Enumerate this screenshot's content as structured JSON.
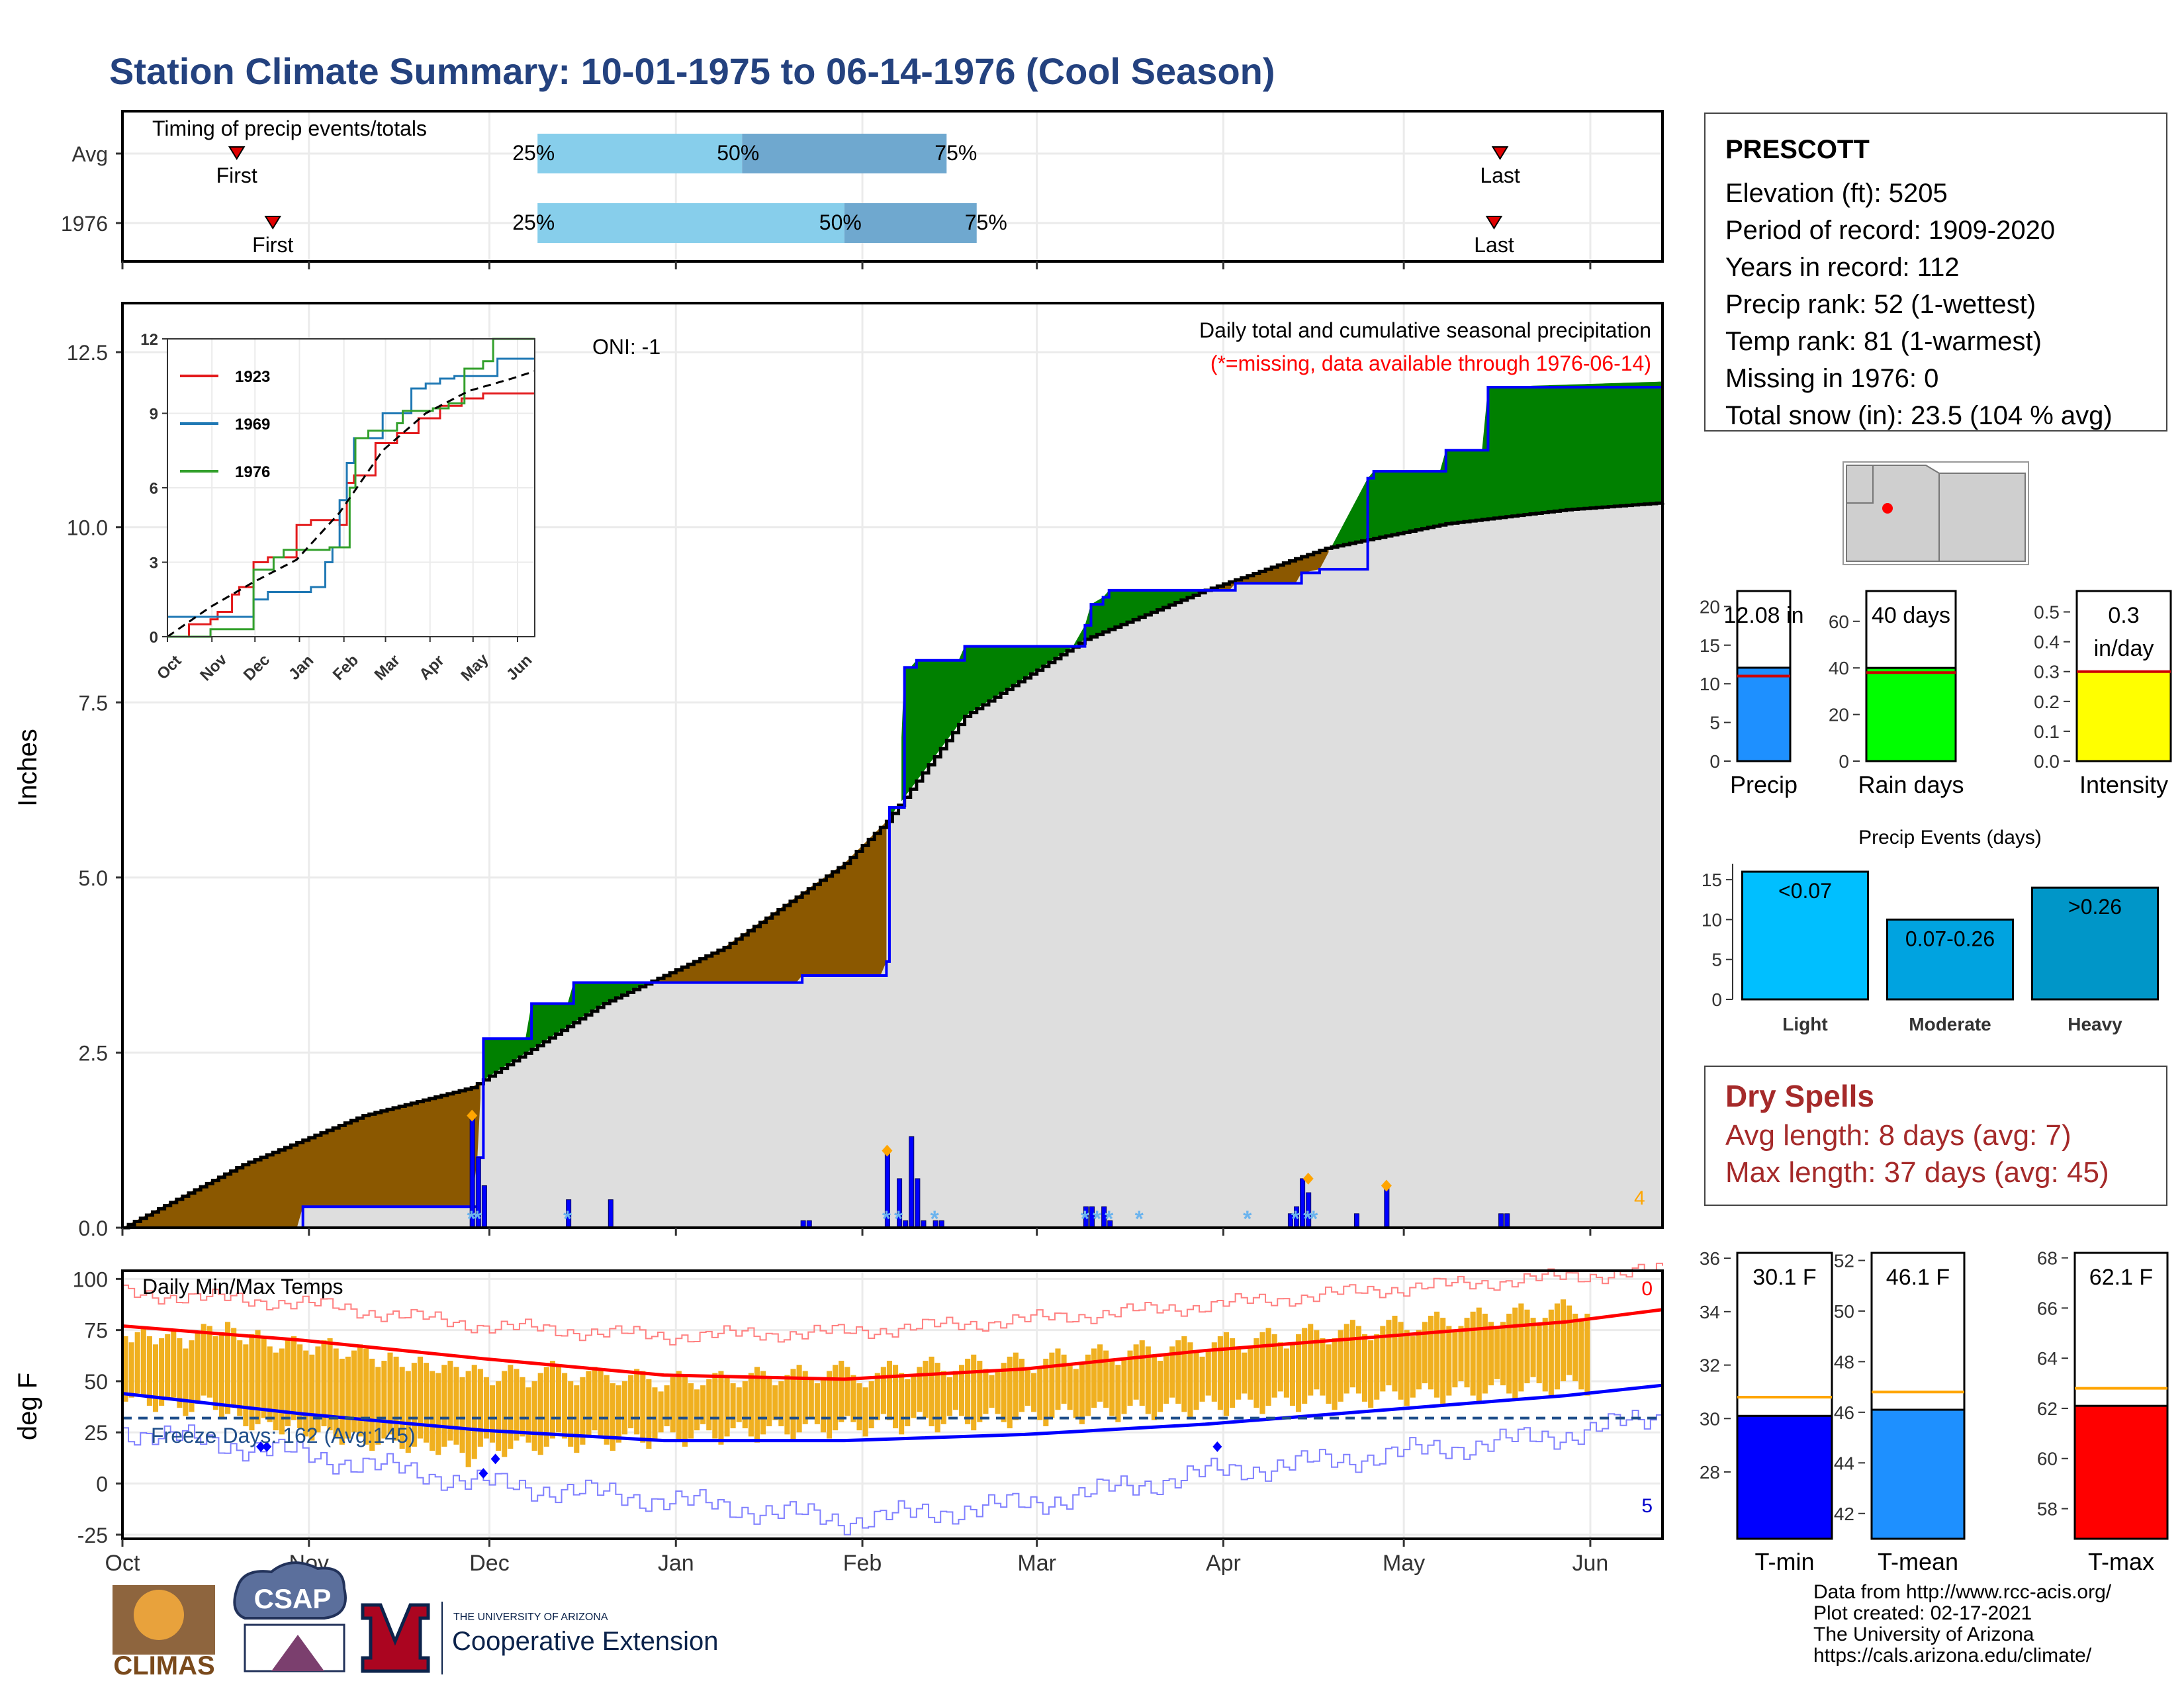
{
  "title": "Station Climate Summary: 10-01-1975 to 06-14-1976 (Cool Season)",
  "colors": {
    "title": "#24427f",
    "below_avg": "#8B5800",
    "above_avg": "#008000",
    "cumul_line": "#0000ff",
    "avg_fill": "#dedede",
    "temp_bar": "#f0b020",
    "tmax_avg": "#ff0000",
    "tmin_avg": "#0000ff",
    "light_blue": "#87ceeb",
    "steel_blue": "#6fa8cf"
  },
  "timing": {
    "title": "Timing of precip events/totals",
    "rows": [
      {
        "label": "Avg",
        "first": "First",
        "last": "Last",
        "p25": "25%",
        "p50": "50%",
        "p75": "75%",
        "first_day": 19,
        "last_day": 229,
        "q25_day": 69,
        "q50_day": 103,
        "q75_day": 137
      },
      {
        "label": "1976",
        "first": "First",
        "last": "Last",
        "p25": "25%",
        "p50": "50%",
        "p75": "75%",
        "first_day": 25,
        "last_day": 228,
        "q25_day": 69,
        "q50_day": 120,
        "q75_day": 142
      }
    ]
  },
  "precip_panel": {
    "ylabel": "Inches",
    "title": "Daily total and cumulative seasonal precipitation",
    "subtitle": "(*=missing, data available through 1976-06-14)",
    "oni": "ONI: -1",
    "corner_count": "4",
    "yticks": [
      "0.0",
      "2.5",
      "5.0",
      "7.5",
      "10.0",
      "12.5"
    ]
  },
  "inset": {
    "yticks": [
      "0",
      "3",
      "6",
      "9",
      "12"
    ],
    "xticks": [
      "Oct",
      "Nov",
      "Dec",
      "Jan",
      "Feb",
      "Mar",
      "Apr",
      "May",
      "Jun"
    ],
    "legend": [
      {
        "name": "1923",
        "color": "#e31a1c"
      },
      {
        "name": "1969",
        "color": "#1f78b4"
      },
      {
        "name": "1976",
        "color": "#33a02c"
      }
    ]
  },
  "temp_panel": {
    "ylabel": "deg F",
    "title": "Daily Min/Max Temps",
    "freeze": "Freeze Days: 162 (Avg:145)",
    "count_top": "0",
    "count_bottom": "5",
    "yticks": [
      "-25",
      "0",
      "25",
      "50",
      "75",
      "100"
    ]
  },
  "xaxis": {
    "months": [
      "Oct",
      "Nov",
      "Dec",
      "Jan",
      "Feb",
      "Mar",
      "Apr",
      "May",
      "Jun"
    ]
  },
  "station": {
    "name": "PRESCOTT",
    "lines": [
      "Elevation (ft): 5205",
      "Period of record: 1909-2020",
      "Years in record: 112",
      "Precip rank: 52 (1-wettest)",
      "Temp rank: 81 (1-warmest)",
      "Missing in 1976: 0",
      "Total snow (in): 23.5 (104 % avg)"
    ]
  },
  "summary_bars": [
    {
      "label": "Precip",
      "value_text": "12.08 in",
      "value": 12.08,
      "avg": 11.0,
      "ymax": 22,
      "yticks": [
        "0",
        "5",
        "10",
        "15",
        "20"
      ],
      "color": "#1e90ff"
    },
    {
      "label": "Rain days",
      "value_text": "40 days",
      "value": 40,
      "avg": 38,
      "ymax": 73,
      "yticks": [
        "0",
        "20",
        "40",
        "60"
      ],
      "color": "#00ff00"
    },
    {
      "label": "Intensity",
      "value_text": "0.3 in/day",
      "value": 0.3,
      "avg": 0.3,
      "ymax": 0.57,
      "yticks": [
        "0.0",
        "0.1",
        "0.2",
        "0.3",
        "0.4",
        "0.5"
      ],
      "color": "#ffff00"
    }
  ],
  "events": {
    "title": "Precip Events (days)",
    "yticks": [
      "0",
      "5",
      "10",
      "15"
    ],
    "bars": [
      {
        "label": "Light",
        "value": 16,
        "bar_text": "<0.07",
        "color": "#00bfff"
      },
      {
        "label": "Moderate",
        "value": 10,
        "bar_text": "0.07-0.26",
        "color": "#00a3e0"
      },
      {
        "label": "Heavy",
        "value": 14,
        "bar_text": ">0.26",
        "color": "#0096c8"
      }
    ]
  },
  "dry_spells": {
    "title": "Dry Spells",
    "avg": "Avg length: 8 days (avg: 7)",
    "max": "Max length: 37 days (avg: 45)"
  },
  "temp_bars": [
    {
      "label": "T-min",
      "value_text": "30.1 F",
      "value": 30.1,
      "avg": 30.8,
      "ymin": 25.5,
      "ymax": 36.2,
      "yticks": [
        "28",
        "30",
        "32",
        "34",
        "36"
      ],
      "color": "#0000ff"
    },
    {
      "label": "T-mean",
      "value_text": "46.1 F",
      "value": 46.1,
      "avg": 46.8,
      "ymin": 41.0,
      "ymax": 52.3,
      "yticks": [
        "42",
        "44",
        "46",
        "48",
        "50",
        "52"
      ],
      "color": "#1e90ff"
    },
    {
      "label": "T-max",
      "value_text": "62.1 F",
      "value": 62.1,
      "avg": 62.8,
      "ymin": 56.8,
      "ymax": 68.2,
      "yticks": [
        "58",
        "60",
        "62",
        "64",
        "66",
        "68"
      ],
      "color": "#ff0000"
    }
  ],
  "footer": {
    "lines": [
      "Data from http://www.rcc-acis.org/",
      "Plot created: 02-17-2021",
      "The University of Arizona",
      "https://cals.arizona.edu/climate/"
    ],
    "logo_climas": "CLIMAS",
    "logo_csap": "CSAP",
    "ua_small": "THE UNIVERSITY OF ARIZONA",
    "ua_big": "Cooperative Extension"
  },
  "chart_data": [
    {
      "type": "area",
      "title": "Daily total and cumulative seasonal precipitation",
      "ylabel": "Inches",
      "ylim": [
        0,
        13.2
      ],
      "x_unit": "day of season (0 = Oct 1, 1975)",
      "cumulative_1976": {
        "x": [
          0,
          29,
          30,
          58,
          59,
          60,
          67,
          68,
          74,
          75,
          80,
          81,
          112,
          113,
          126,
          127,
          127.5,
          129,
          130,
          131,
          132,
          133,
          139,
          140,
          158,
          160,
          161,
          163,
          164,
          183,
          184,
          185,
          186,
          195,
          196,
          199,
          207,
          208,
          211,
          219,
          220,
          226,
          227,
          256
        ],
        "y": [
          0,
          0,
          0.3,
          0.3,
          1.0,
          2.7,
          2.7,
          3.2,
          3.2,
          3.5,
          3.5,
          3.5,
          3.5,
          3.6,
          3.6,
          3.8,
          6.0,
          6.0,
          8.0,
          8.0,
          8.1,
          8.1,
          8.1,
          8.3,
          8.3,
          8.6,
          8.9,
          9.0,
          9.1,
          9.1,
          9.1,
          9.2,
          9.2,
          9.2,
          9.35,
          9.4,
          10.7,
          10.8,
          10.8,
          10.8,
          11.1,
          11.1,
          12.0,
          12.08
        ]
      },
      "average_cumulative": {
        "x": [
          0,
          20,
          40,
          58,
          80,
          100,
          120,
          127,
          140,
          160,
          180,
          200,
          220,
          240,
          256
        ],
        "y": [
          0,
          0.9,
          1.6,
          2.0,
          3.2,
          4.0,
          5.2,
          5.8,
          7.3,
          8.4,
          9.1,
          9.7,
          10.05,
          10.25,
          10.35
        ]
      },
      "daily_precip": {
        "x": [
          58,
          59,
          60,
          74,
          81,
          113,
          114,
          127,
          129,
          130,
          131,
          132,
          133,
          135,
          136,
          160,
          161,
          163,
          164,
          194,
          195,
          196,
          197,
          205,
          210,
          229,
          230
        ],
        "y": [
          1.6,
          1.0,
          0.6,
          0.4,
          0.4,
          0.1,
          0.1,
          1.1,
          0.7,
          0.1,
          1.3,
          0.7,
          0.1,
          0.1,
          0.1,
          0.3,
          0.3,
          0.3,
          0.1,
          0.2,
          0.3,
          0.7,
          0.5,
          0.2,
          0.6,
          0.2,
          0.2
        ]
      },
      "snow_days_x": [
        58,
        59,
        74,
        127,
        129,
        135,
        160,
        162,
        164,
        169,
        187,
        195,
        197,
        198
      ]
    },
    {
      "type": "line",
      "title": "",
      "ylim": [
        0,
        12
      ],
      "xlim_months": [
        "Oct",
        "Jun"
      ],
      "series": [
        {
          "name": "1923",
          "x": [
            0,
            15,
            30,
            35,
            45,
            50,
            60,
            70,
            80,
            90,
            100,
            112,
            120,
            125,
            130,
            145,
            160,
            175,
            190,
            205,
            220,
            240,
            256
          ],
          "y": [
            0,
            0.5,
            0.7,
            1.0,
            1.7,
            2.0,
            3.0,
            3.2,
            3.2,
            4.5,
            4.7,
            4.7,
            4.5,
            6.2,
            6.5,
            7.8,
            8.2,
            8.8,
            9.3,
            9.6,
            9.8,
            9.8,
            9.8
          ]
        },
        {
          "name": "1969",
          "x": [
            0,
            30,
            60,
            70,
            80,
            100,
            110,
            115,
            120,
            125,
            130,
            150,
            170,
            180,
            190,
            200,
            230,
            256
          ],
          "y": [
            0.8,
            0.8,
            1.5,
            1.8,
            1.8,
            2.0,
            3.0,
            3.6,
            5.5,
            7.0,
            8.0,
            9.0,
            10.0,
            10.2,
            10.4,
            10.5,
            11.2,
            11.2
          ]
        },
        {
          "name": "1976",
          "x": [
            0,
            29,
            30,
            58,
            60,
            74,
            81,
            113,
            127,
            131,
            140,
            160,
            164,
            185,
            196,
            207,
            220,
            227,
            256
          ],
          "y": [
            0,
            0,
            0.3,
            0.3,
            2.7,
            3.2,
            3.5,
            3.6,
            6.0,
            8.0,
            8.3,
            8.6,
            9.1,
            9.2,
            9.4,
            10.8,
            11.1,
            12.0,
            12.08
          ]
        },
        {
          "name": "average",
          "x": [
            0,
            30,
            60,
            90,
            120,
            150,
            180,
            210,
            240,
            256
          ],
          "y": [
            0,
            1.2,
            2.2,
            3.1,
            5.0,
            7.5,
            9.0,
            9.9,
            10.4,
            10.7
          ]
        }
      ]
    },
    {
      "type": "bar",
      "title": "Daily Min/Max Temps",
      "ylabel": "deg F",
      "ylim": [
        -27,
        104
      ],
      "x_unit": "day of season (0 = Oct 1, 1975)",
      "tmax_avg": {
        "x": [
          0,
          30,
          60,
          90,
          120,
          150,
          180,
          210,
          240,
          256
        ],
        "y": [
          77,
          70,
          61,
          53,
          51,
          56,
          65,
          72,
          79,
          85
        ]
      },
      "tmin_avg": {
        "x": [
          0,
          30,
          60,
          90,
          120,
          150,
          180,
          210,
          240,
          256
        ],
        "y": [
          44,
          34,
          26,
          21,
          21,
          24,
          29,
          36,
          43,
          48
        ]
      },
      "tmax_record": {
        "x": [
          0,
          30,
          60,
          90,
          120,
          150,
          180,
          210,
          240,
          256
        ],
        "y": [
          93,
          88,
          77,
          72,
          74,
          80,
          87,
          95,
          101,
          104
        ]
      },
      "tmin_record": {
        "x": [
          0,
          30,
          60,
          90,
          120,
          150,
          180,
          210,
          240,
          256
        ],
        "y": [
          26,
          14,
          0,
          -8,
          -18,
          -10,
          5,
          14,
          24,
          33
        ]
      },
      "freeze_line": 32,
      "daily_high": [
        72,
        69,
        74,
        76,
        72,
        68,
        71,
        73,
        75,
        71,
        66,
        70,
        74,
        78,
        77,
        72,
        74,
        79,
        76,
        70,
        68,
        73,
        75,
        71,
        67,
        64,
        66,
        70,
        72,
        68,
        65,
        63,
        67,
        70,
        71,
        66,
        61,
        62,
        65,
        68,
        66,
        61,
        57,
        60,
        64,
        62,
        57,
        55,
        59,
        62,
        59,
        55,
        54,
        58,
        60,
        57,
        52,
        55,
        58,
        56,
        52,
        48,
        50,
        55,
        58,
        56,
        52,
        47,
        50,
        54,
        57,
        60,
        58,
        54,
        50,
        48,
        52,
        55,
        57,
        56,
        53,
        49,
        48,
        50,
        53,
        56,
        55,
        51,
        47,
        45,
        48,
        52,
        55,
        53,
        49,
        46,
        48,
        51,
        54,
        55,
        52,
        49,
        47,
        50,
        54,
        57,
        55,
        51,
        48,
        50,
        53,
        56,
        58,
        55,
        51,
        49,
        51,
        55,
        58,
        60,
        57,
        53,
        49,
        47,
        50,
        54,
        57,
        60,
        58,
        54,
        51,
        53,
        57,
        60,
        62,
        59,
        55,
        52,
        55,
        58,
        61,
        63,
        60,
        56,
        53,
        55,
        59,
        62,
        64,
        61,
        57,
        54,
        57,
        61,
        64,
        66,
        63,
        59,
        56,
        59,
        63,
        66,
        68,
        65,
        61,
        58,
        61,
        65,
        68,
        70,
        67,
        63,
        60,
        63,
        67,
        70,
        72,
        69,
        65,
        62,
        65,
        69,
        72,
        74,
        71,
        67,
        64,
        67,
        71,
        74,
        76,
        73,
        69,
        66,
        69,
        73,
        76,
        78,
        75,
        71,
        68,
        71,
        75,
        78,
        80,
        77,
        73,
        70,
        73,
        77,
        80,
        82,
        79,
        75,
        72,
        75,
        79,
        82,
        84,
        81,
        77,
        74,
        77,
        81,
        84,
        86,
        83,
        79,
        76,
        79,
        83,
        86,
        88,
        85,
        81,
        78,
        81,
        85,
        88,
        90,
        87,
        83,
        80,
        83
      ],
      "daily_low": [
        40,
        42,
        44,
        43,
        38,
        35,
        38,
        41,
        42,
        37,
        33,
        35,
        39,
        43,
        42,
        36,
        32,
        34,
        38,
        33,
        28,
        26,
        29,
        32,
        30,
        26,
        24,
        28,
        31,
        27,
        23,
        21,
        25,
        28,
        26,
        22,
        19,
        22,
        25,
        23,
        19,
        16,
        19,
        22,
        24,
        21,
        17,
        15,
        18,
        22,
        20,
        16,
        14,
        18,
        21,
        19,
        15,
        8,
        12,
        18,
        22,
        20,
        16,
        13,
        17,
        21,
        23,
        20,
        16,
        14,
        18,
        22,
        25,
        22,
        18,
        15,
        19,
        23,
        26,
        23,
        19,
        16,
        20,
        24,
        27,
        24,
        20,
        17,
        21,
        25,
        28,
        25,
        21,
        18,
        22,
        26,
        29,
        26,
        22,
        19,
        23,
        27,
        30,
        27,
        23,
        20,
        24,
        28,
        31,
        28,
        24,
        21,
        25,
        29,
        32,
        29,
        25,
        22,
        26,
        30,
        33,
        30,
        26,
        23,
        27,
        31,
        34,
        31,
        27,
        24,
        28,
        32,
        35,
        32,
        28,
        25,
        29,
        33,
        36,
        33,
        29,
        26,
        30,
        34,
        37,
        34,
        30,
        27,
        31,
        35,
        38,
        35,
        31,
        28,
        32,
        36,
        39,
        36,
        32,
        29,
        33,
        37,
        40,
        37,
        33,
        30,
        34,
        38,
        41,
        38,
        34,
        31,
        35,
        39,
        42,
        39,
        35,
        32,
        36,
        40,
        43,
        40,
        36,
        33,
        37,
        41,
        44,
        41,
        37,
        34,
        38,
        42,
        45,
        42,
        38,
        35,
        39,
        43,
        46,
        43,
        39,
        36,
        40,
        44,
        47,
        44,
        40,
        37,
        41,
        45,
        48,
        45,
        41,
        38,
        42,
        46,
        49,
        46,
        42,
        39,
        43,
        47,
        50,
        47,
        43,
        40,
        44,
        48,
        51,
        48,
        44,
        41,
        45,
        49,
        52,
        49,
        45,
        42,
        46,
        50,
        53,
        50,
        46,
        43,
        47,
        51,
        54,
        51,
        47,
        44,
        48
      ]
    }
  ]
}
